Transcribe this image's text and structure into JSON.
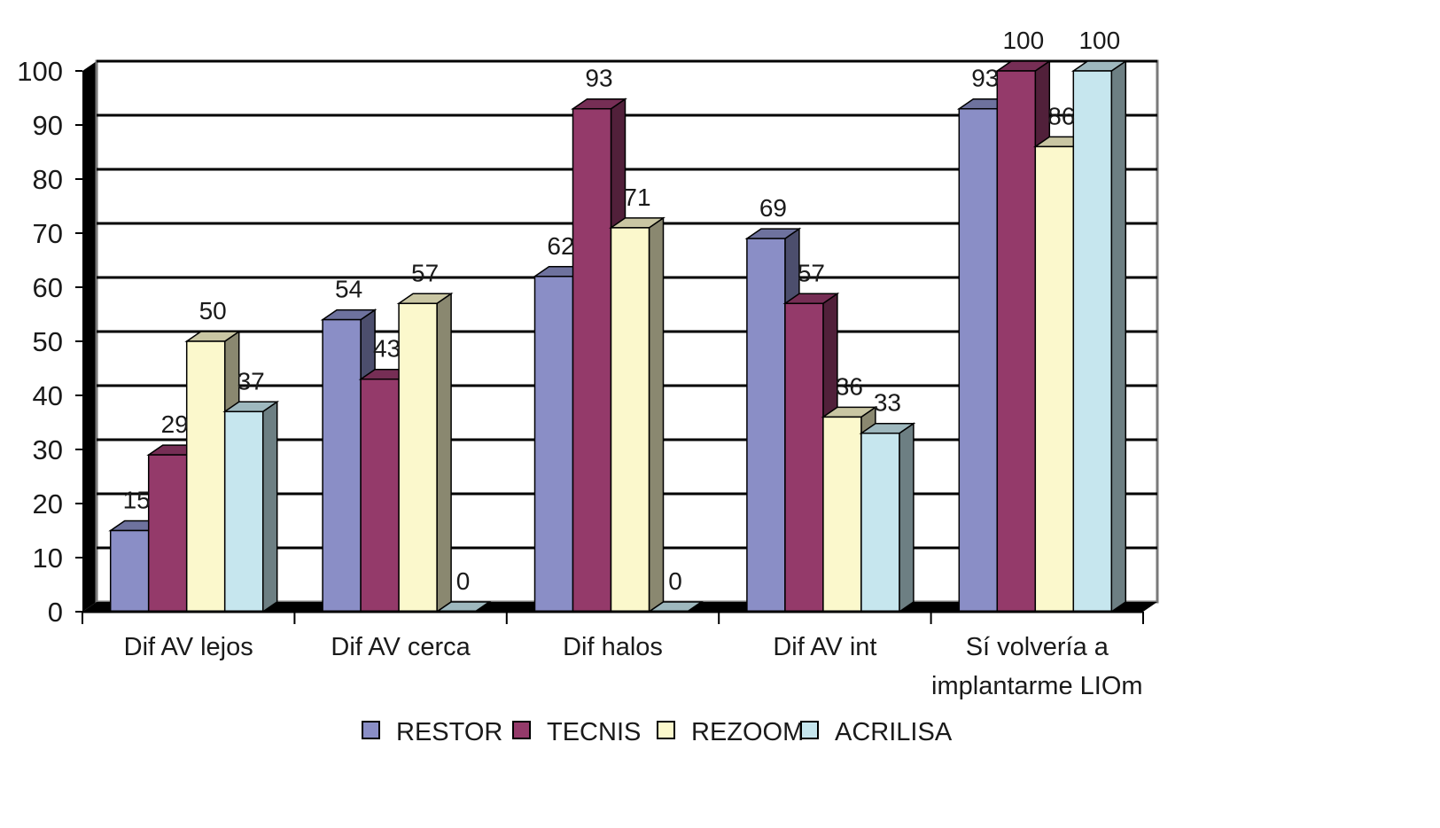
{
  "chart_data": {
    "type": "bar",
    "title": "",
    "xlabel": "",
    "ylabel": "",
    "ylim": [
      0,
      100
    ],
    "yticks": [
      "0",
      "10",
      "20",
      "30",
      "40",
      "50",
      "60",
      "70",
      "80",
      "90",
      "100"
    ],
    "grid": true,
    "legend_position": "bottom",
    "categories": [
      [
        "Dif AV lejos"
      ],
      [
        "Dif AV cerca"
      ],
      [
        "Dif halos"
      ],
      [
        "Dif AV int"
      ],
      [
        "Sí volvería a",
        "implantarme LIOm"
      ]
    ],
    "series": [
      {
        "name": "RESTOR",
        "color": "#8a8ec6",
        "values": [
          15,
          54,
          62,
          69,
          93
        ]
      },
      {
        "name": "TECNIS",
        "color": "#943a6a",
        "values": [
          29,
          43,
          93,
          57,
          100
        ]
      },
      {
        "name": "REZOOM",
        "color": "#fbf8cc",
        "values": [
          50,
          57,
          71,
          36,
          86
        ]
      },
      {
        "name": "ACRILISA",
        "color": "#c6e6ee",
        "values": [
          37,
          0,
          0,
          33,
          100
        ]
      }
    ]
  }
}
